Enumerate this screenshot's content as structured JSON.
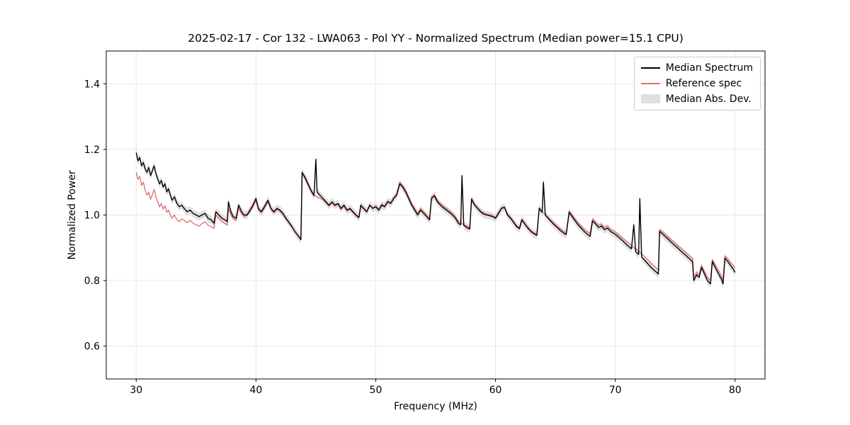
{
  "figure": {
    "background": "#ffffff",
    "frame_color": "#000000",
    "grid_color": "#e5e5e5",
    "text_color": "#000000"
  },
  "chart_data": {
    "type": "line",
    "title": "2025-02-17 - Cor 132 - LWA063 - Pol YY - Normalized Spectrum (Median power=15.1 CPU)",
    "xlabel": "Frequency (MHz)",
    "ylabel": "Normalized Power",
    "xlim": [
      27.5,
      82.5
    ],
    "ylim": [
      0.5,
      1.5
    ],
    "xticks": [
      30,
      40,
      50,
      60,
      70,
      80
    ],
    "yticks": [
      0.6,
      0.8,
      1.0,
      1.2,
      1.4
    ],
    "grid": true,
    "legend_position": "upper right",
    "series_meta": [
      {
        "name": "Median Spectrum",
        "type": "line",
        "color": "#000000",
        "width": 1.4
      },
      {
        "name": "Reference spec",
        "type": "line",
        "color": "#e66a6a",
        "width": 1.3
      },
      {
        "name": "Median Abs. Dev.",
        "type": "band",
        "color": "#c9c9c9",
        "opacity": 0.6,
        "half_width": 0.012
      }
    ],
    "points_format": [
      "frequency_mhz",
      "median_spectrum",
      "reference_spec"
    ],
    "points": [
      [
        30.0,
        1.19,
        1.13
      ],
      [
        30.15,
        1.165,
        1.108
      ],
      [
        30.3,
        1.175,
        1.118
      ],
      [
        30.45,
        1.15,
        1.09
      ],
      [
        30.6,
        1.16,
        1.1
      ],
      [
        30.75,
        1.14,
        1.075
      ],
      [
        30.9,
        1.13,
        1.06
      ],
      [
        31.05,
        1.145,
        1.07
      ],
      [
        31.2,
        1.12,
        1.048
      ],
      [
        31.35,
        1.135,
        1.062
      ],
      [
        31.5,
        1.15,
        1.078
      ],
      [
        31.65,
        1.125,
        1.055
      ],
      [
        31.8,
        1.11,
        1.04
      ],
      [
        31.95,
        1.095,
        1.025
      ],
      [
        32.1,
        1.105,
        1.035
      ],
      [
        32.25,
        1.085,
        1.018
      ],
      [
        32.4,
        1.095,
        1.028
      ],
      [
        32.55,
        1.07,
        1.008
      ],
      [
        32.7,
        1.08,
        1.015
      ],
      [
        32.85,
        1.06,
        0.999
      ],
      [
        33.0,
        1.045,
        0.99
      ],
      [
        33.2,
        1.055,
        1.0
      ],
      [
        33.4,
        1.035,
        0.985
      ],
      [
        33.6,
        1.025,
        0.98
      ],
      [
        33.8,
        1.03,
        0.988
      ],
      [
        34.0,
        1.02,
        0.984
      ],
      [
        34.25,
        1.01,
        0.976
      ],
      [
        34.5,
        1.015,
        0.984
      ],
      [
        34.75,
        1.005,
        0.975
      ],
      [
        35.0,
        1.0,
        0.97
      ],
      [
        35.25,
        0.995,
        0.966
      ],
      [
        35.5,
        1.0,
        0.974
      ],
      [
        35.75,
        1.005,
        0.979
      ],
      [
        36.0,
        0.99,
        0.969
      ],
      [
        36.25,
        0.985,
        0.964
      ],
      [
        36.5,
        0.975,
        0.959
      ],
      [
        36.65,
        1.01,
        1.0
      ],
      [
        36.9,
        1.0,
        0.99
      ],
      [
        37.15,
        0.99,
        0.98
      ],
      [
        37.4,
        0.985,
        0.974
      ],
      [
        37.6,
        0.98,
        0.969
      ],
      [
        37.7,
        1.04,
        1.02
      ],
      [
        37.9,
        1.01,
        1.0
      ],
      [
        38.1,
        0.995,
        0.989
      ],
      [
        38.35,
        0.99,
        0.984
      ],
      [
        38.55,
        1.03,
        1.02
      ],
      [
        38.8,
        1.01,
        1.004
      ],
      [
        39.0,
        1.0,
        0.995
      ],
      [
        39.25,
        1.0,
        0.999
      ],
      [
        39.5,
        1.015,
        1.01
      ],
      [
        39.75,
        1.03,
        1.025
      ],
      [
        40.0,
        1.05,
        1.044
      ],
      [
        40.2,
        1.02,
        1.015
      ],
      [
        40.45,
        1.01,
        1.007
      ],
      [
        40.7,
        1.025,
        1.02
      ],
      [
        41.0,
        1.045,
        1.04
      ],
      [
        41.25,
        1.02,
        1.017
      ],
      [
        41.5,
        1.01,
        1.007
      ],
      [
        41.75,
        1.02,
        1.017
      ],
      [
        42.0,
        1.015,
        1.012
      ],
      [
        42.25,
        1.005,
        1.002
      ],
      [
        42.5,
        0.99,
        0.988
      ],
      [
        42.75,
        0.978,
        0.976
      ],
      [
        43.0,
        0.965,
        0.963
      ],
      [
        43.25,
        0.95,
        0.949
      ],
      [
        43.5,
        0.938,
        0.937
      ],
      [
        43.75,
        0.925,
        0.924
      ],
      [
        43.85,
        1.13,
        1.127
      ],
      [
        44.1,
        1.115,
        1.11
      ],
      [
        44.35,
        1.095,
        1.09
      ],
      [
        44.6,
        1.075,
        1.072
      ],
      [
        44.85,
        1.06,
        1.057
      ],
      [
        45.0,
        1.17,
        1.058
      ],
      [
        45.1,
        1.07,
        1.054
      ],
      [
        45.35,
        1.06,
        1.051
      ],
      [
        45.6,
        1.05,
        1.047
      ],
      [
        45.85,
        1.04,
        1.037
      ],
      [
        46.1,
        1.03,
        1.027
      ],
      [
        46.35,
        1.04,
        1.037
      ],
      [
        46.6,
        1.03,
        1.027
      ],
      [
        46.85,
        1.035,
        1.033
      ],
      [
        47.1,
        1.02,
        1.017
      ],
      [
        47.35,
        1.03,
        1.027
      ],
      [
        47.6,
        1.015,
        1.012
      ],
      [
        47.85,
        1.02,
        1.017
      ],
      [
        48.1,
        1.01,
        1.007
      ],
      [
        48.35,
        1.0,
        0.997
      ],
      [
        48.6,
        0.993,
        0.99
      ],
      [
        48.75,
        1.03,
        1.027
      ],
      [
        49.0,
        1.02,
        1.017
      ],
      [
        49.25,
        1.01,
        1.009
      ],
      [
        49.5,
        1.03,
        1.03
      ],
      [
        49.75,
        1.02,
        1.021
      ],
      [
        50.0,
        1.025,
        1.027
      ],
      [
        50.25,
        1.015,
        1.017
      ],
      [
        50.5,
        1.03,
        1.033
      ],
      [
        50.75,
        1.025,
        1.028
      ],
      [
        51.0,
        1.04,
        1.043
      ],
      [
        51.25,
        1.035,
        1.038
      ],
      [
        51.5,
        1.05,
        1.053
      ],
      [
        51.75,
        1.06,
        1.064
      ],
      [
        52.0,
        1.095,
        1.1
      ],
      [
        52.25,
        1.085,
        1.09
      ],
      [
        52.5,
        1.07,
        1.075
      ],
      [
        52.75,
        1.05,
        1.055
      ],
      [
        53.0,
        1.03,
        1.035
      ],
      [
        53.25,
        1.015,
        1.02
      ],
      [
        53.5,
        1.0,
        1.005
      ],
      [
        53.75,
        1.015,
        1.02
      ],
      [
        54.0,
        1.005,
        1.01
      ],
      [
        54.25,
        0.995,
        1.0
      ],
      [
        54.5,
        0.985,
        0.99
      ],
      [
        54.65,
        1.05,
        1.055
      ],
      [
        54.9,
        1.058,
        1.062
      ],
      [
        55.15,
        1.04,
        1.045
      ],
      [
        55.4,
        1.03,
        1.035
      ],
      [
        55.65,
        1.022,
        1.027
      ],
      [
        55.9,
        1.015,
        1.02
      ],
      [
        56.15,
        1.008,
        1.013
      ],
      [
        56.4,
        1.0,
        1.005
      ],
      [
        56.65,
        0.99,
        0.995
      ],
      [
        56.9,
        0.975,
        0.981
      ],
      [
        57.1,
        0.97,
        0.976
      ],
      [
        57.2,
        1.12,
        0.974
      ],
      [
        57.35,
        0.968,
        0.971
      ],
      [
        57.6,
        0.962,
        0.966
      ],
      [
        57.85,
        0.957,
        0.961
      ],
      [
        58.0,
        1.048,
        1.051
      ],
      [
        58.25,
        1.03,
        1.033
      ],
      [
        58.5,
        1.02,
        1.023
      ],
      [
        58.75,
        1.01,
        1.013
      ],
      [
        59.0,
        1.003,
        1.006
      ],
      [
        59.25,
        1.0,
        1.003
      ],
      [
        59.5,
        0.998,
        1.001
      ],
      [
        59.75,
        0.995,
        0.998
      ],
      [
        60.0,
        0.99,
        0.993
      ],
      [
        60.25,
        1.005,
        1.008
      ],
      [
        60.5,
        1.02,
        1.022
      ],
      [
        60.75,
        1.023,
        1.025
      ],
      [
        61.0,
        1.0,
        1.003
      ],
      [
        61.25,
        0.99,
        0.993
      ],
      [
        61.5,
        0.978,
        0.981
      ],
      [
        61.75,
        0.965,
        0.968
      ],
      [
        62.0,
        0.958,
        0.961
      ],
      [
        62.2,
        0.985,
        0.988
      ],
      [
        62.45,
        0.972,
        0.975
      ],
      [
        62.7,
        0.96,
        0.963
      ],
      [
        62.95,
        0.95,
        0.953
      ],
      [
        63.2,
        0.943,
        0.946
      ],
      [
        63.45,
        0.938,
        0.941
      ],
      [
        63.65,
        1.02,
        1.022
      ],
      [
        63.9,
        1.008,
        1.01
      ],
      [
        64.0,
        1.1,
        1.005
      ],
      [
        64.15,
        1.0,
        1.002
      ],
      [
        64.4,
        0.99,
        0.992
      ],
      [
        64.65,
        0.98,
        0.983
      ],
      [
        64.9,
        0.97,
        0.974
      ],
      [
        65.15,
        0.962,
        0.966
      ],
      [
        65.4,
        0.953,
        0.958
      ],
      [
        65.65,
        0.946,
        0.951
      ],
      [
        65.9,
        0.94,
        0.945
      ],
      [
        66.15,
        1.008,
        1.012
      ],
      [
        66.4,
        0.995,
        1.0
      ],
      [
        66.65,
        0.982,
        0.987
      ],
      [
        66.9,
        0.97,
        0.976
      ],
      [
        67.15,
        0.96,
        0.966
      ],
      [
        67.4,
        0.95,
        0.957
      ],
      [
        67.65,
        0.942,
        0.95
      ],
      [
        67.9,
        0.935,
        0.943
      ],
      [
        68.1,
        0.982,
        0.988
      ],
      [
        68.35,
        0.973,
        0.979
      ],
      [
        68.6,
        0.962,
        0.968
      ],
      [
        68.85,
        0.966,
        0.972
      ],
      [
        69.1,
        0.955,
        0.962
      ],
      [
        69.35,
        0.96,
        0.966
      ],
      [
        69.6,
        0.95,
        0.956
      ],
      [
        69.85,
        0.945,
        0.952
      ],
      [
        70.1,
        0.938,
        0.945
      ],
      [
        70.35,
        0.93,
        0.938
      ],
      [
        70.6,
        0.922,
        0.93
      ],
      [
        70.85,
        0.913,
        0.922
      ],
      [
        71.1,
        0.905,
        0.915
      ],
      [
        71.35,
        0.897,
        0.908
      ],
      [
        71.55,
        0.97,
        0.9
      ],
      [
        71.7,
        0.888,
        0.898
      ],
      [
        71.95,
        0.88,
        0.89
      ],
      [
        72.05,
        1.05,
        0.886
      ],
      [
        72.2,
        0.872,
        0.882
      ],
      [
        72.45,
        0.862,
        0.873
      ],
      [
        72.7,
        0.852,
        0.864
      ],
      [
        72.95,
        0.842,
        0.855
      ],
      [
        73.2,
        0.833,
        0.846
      ],
      [
        73.45,
        0.825,
        0.838
      ],
      [
        73.6,
        0.82,
        0.832
      ],
      [
        73.7,
        0.95,
        0.955
      ],
      [
        73.95,
        0.942,
        0.948
      ],
      [
        74.2,
        0.933,
        0.94
      ],
      [
        74.45,
        0.925,
        0.932
      ],
      [
        74.7,
        0.916,
        0.924
      ],
      [
        74.95,
        0.908,
        0.916
      ],
      [
        75.2,
        0.9,
        0.908
      ],
      [
        75.45,
        0.891,
        0.9
      ],
      [
        75.7,
        0.883,
        0.892
      ],
      [
        75.95,
        0.875,
        0.884
      ],
      [
        76.2,
        0.866,
        0.876
      ],
      [
        76.45,
        0.858,
        0.868
      ],
      [
        76.55,
        0.8,
        0.81
      ],
      [
        76.8,
        0.818,
        0.826
      ],
      [
        77.0,
        0.81,
        0.818
      ],
      [
        77.2,
        0.84,
        0.846
      ],
      [
        77.45,
        0.82,
        0.828
      ],
      [
        77.7,
        0.8,
        0.81
      ],
      [
        77.95,
        0.79,
        0.8
      ],
      [
        78.1,
        0.858,
        0.864
      ],
      [
        78.35,
        0.84,
        0.848
      ],
      [
        78.6,
        0.822,
        0.832
      ],
      [
        78.85,
        0.805,
        0.816
      ],
      [
        79.0,
        0.79,
        0.802
      ],
      [
        79.15,
        0.868,
        0.875
      ],
      [
        79.4,
        0.858,
        0.866
      ],
      [
        79.65,
        0.845,
        0.855
      ],
      [
        79.85,
        0.835,
        0.846
      ],
      [
        80.0,
        0.825,
        0.838
      ]
    ]
  }
}
